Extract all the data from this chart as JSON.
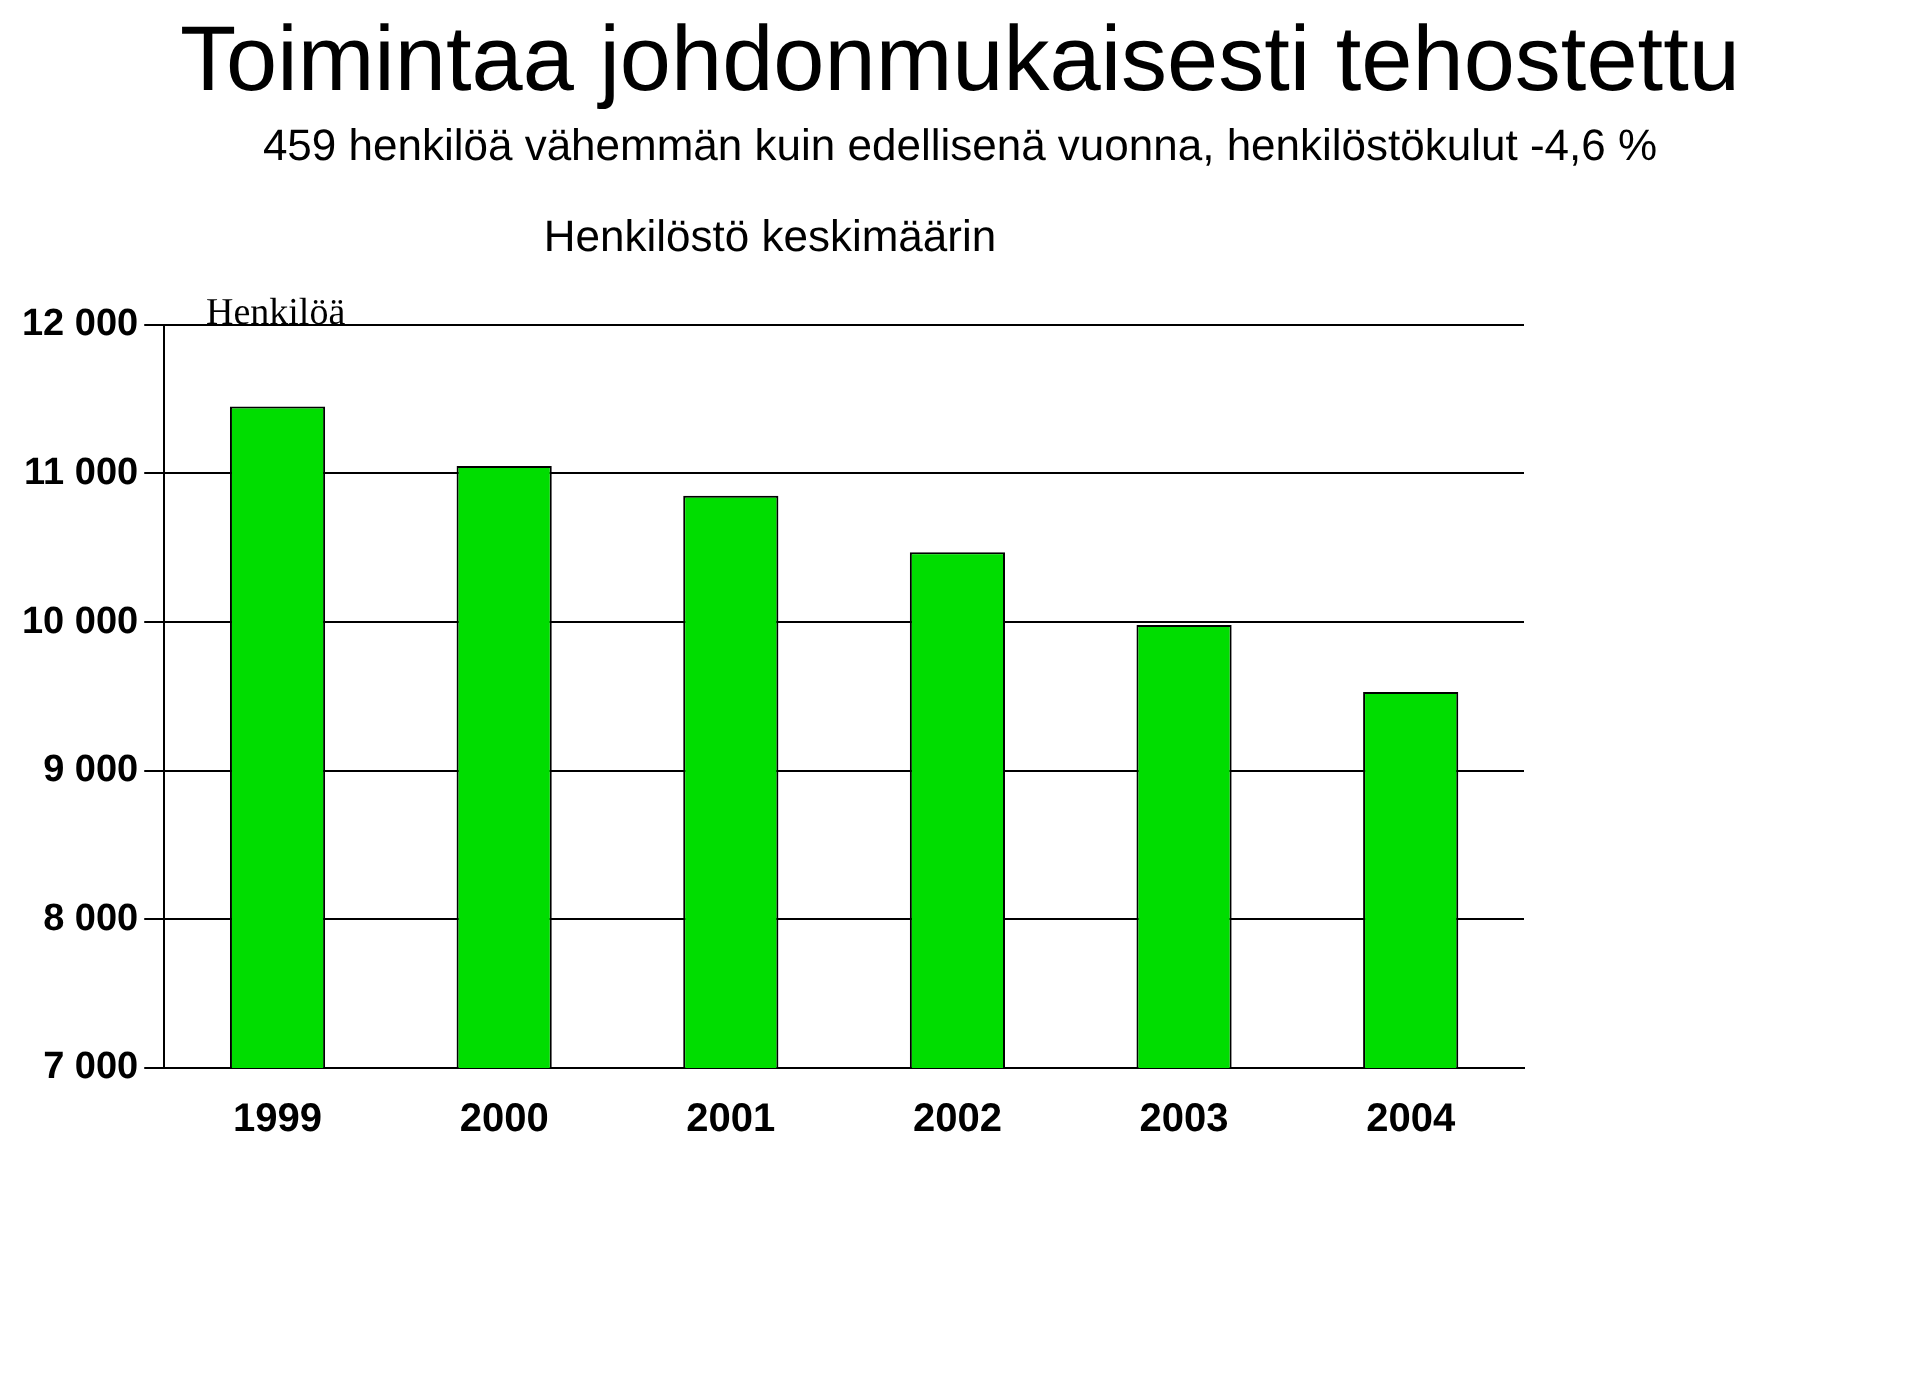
{
  "chart_data": {
    "type": "bar",
    "title": "Toimintaa johdonmukaisesti tehostettu",
    "subtitle": "459 henkilöä vähemmän kuin edellisenä vuonna, henkilöstökulut -4,6 %",
    "annotations": [
      "Henkilöstö keskimäärin"
    ],
    "ylabel": "Henkilöä",
    "categories": [
      "1999",
      "2000",
      "2001",
      "2002",
      "2003",
      "2004"
    ],
    "values": [
      11450,
      11050,
      10850,
      10470,
      9980,
      9530
    ],
    "color": "#00dd00",
    "ylim": [
      7000,
      12000
    ],
    "yticks": [
      {
        "value": 7000,
        "label": "7 000"
      },
      {
        "value": 8000,
        "label": "8 000"
      },
      {
        "value": 9000,
        "label": "9 000"
      },
      {
        "value": 10000,
        "label": "10 000"
      },
      {
        "value": 11000,
        "label": "11 000"
      },
      {
        "value": 12000,
        "label": "12 000"
      }
    ],
    "grid": "y"
  }
}
